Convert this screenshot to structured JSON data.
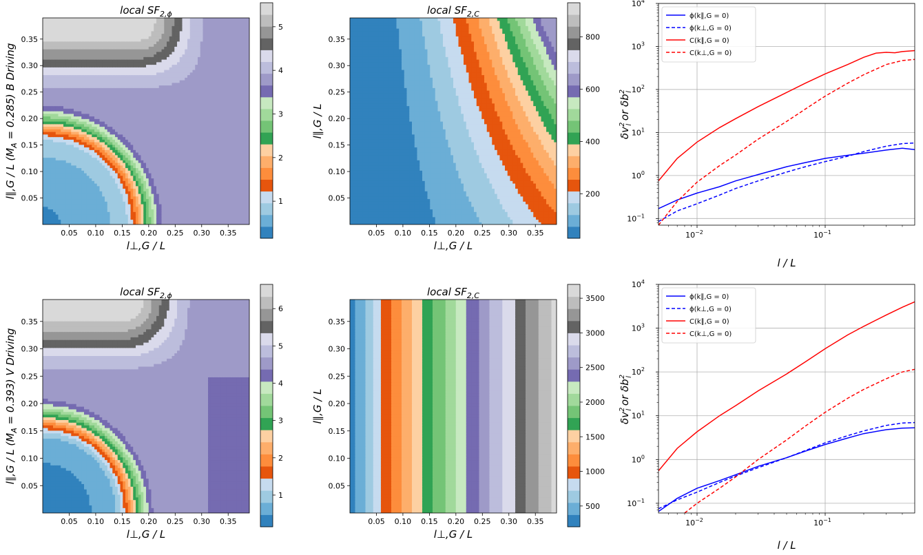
{
  "chart_data": [
    {
      "id": "p1",
      "type": "contour",
      "title": "local SF",
      "title_sub": "2,ϕ",
      "xlabel": "l⊥,G / L",
      "ylabel": "l∥,G / L  (M",
      "ylabel_sub": "A",
      "ylabel_tail": " = 0.285) B Driving",
      "xlim": [
        0,
        0.39
      ],
      "ylim": [
        0,
        0.39
      ],
      "xticks": [
        "0.05",
        "0.10",
        "0.15",
        "0.20",
        "0.25",
        "0.30",
        "0.35"
      ],
      "yticks": [
        "0.05",
        "0.10",
        "0.15",
        "0.20",
        "0.25",
        "0.30",
        "0.35"
      ],
      "colorbar": {
        "min": 0.15,
        "max": 5.55,
        "ticks": [
          "1",
          "2",
          "3",
          "4",
          "5"
        ]
      }
    },
    {
      "id": "p2",
      "type": "contour",
      "title": "local SF",
      "title_sub": "2,C",
      "xlabel": "l⊥,G / L",
      "ylabel": "l∥,G / L",
      "xlim": [
        0,
        0.39
      ],
      "ylim": [
        0,
        0.39
      ],
      "xticks": [
        "0.05",
        "0.10",
        "0.15",
        "0.20",
        "0.25",
        "0.30",
        "0.35"
      ],
      "yticks": [
        "0.05",
        "0.10",
        "0.15",
        "0.20",
        "0.25",
        "0.30",
        "0.35"
      ],
      "colorbar": {
        "min": 30,
        "max": 930,
        "ticks": [
          "200",
          "400",
          "600",
          "800"
        ]
      }
    },
    {
      "id": "p3",
      "type": "line",
      "xlabel": "l / L",
      "ylabel": "δv",
      "ylabel_tail": " or δb",
      "xscale": "log",
      "yscale": "log",
      "xlim": [
        0.005,
        0.5
      ],
      "ylim": [
        0.07,
        10000
      ],
      "xticks": [
        {
          "v": 0.01,
          "b": "10",
          "e": "−2"
        },
        {
          "v": 0.1,
          "b": "10",
          "e": "−1"
        }
      ],
      "yticks": [
        {
          "v": 0.1,
          "b": "10",
          "e": "−1"
        },
        {
          "v": 1,
          "b": "10",
          "e": "0"
        },
        {
          "v": 10,
          "b": "10",
          "e": "1"
        },
        {
          "v": 100,
          "b": "10",
          "e": "2"
        },
        {
          "v": 1000,
          "b": "10",
          "e": "3"
        },
        {
          "v": 10000,
          "b": "10",
          "e": "4"
        }
      ],
      "grid": true,
      "legend": "top-left",
      "series": [
        {
          "name": "ϕ(k∥,G = 0)",
          "color": "#0000ff",
          "dash": "solid",
          "x": [
            0.005,
            0.007,
            0.01,
            0.015,
            0.02,
            0.03,
            0.05,
            0.07,
            0.1,
            0.15,
            0.2,
            0.3,
            0.4,
            0.5
          ],
          "y": [
            0.17,
            0.27,
            0.39,
            0.55,
            0.75,
            1.05,
            1.6,
            2.0,
            2.5,
            2.95,
            3.3,
            3.9,
            4.3,
            4.0
          ]
        },
        {
          "name": "ϕ(k⊥,G = 0)",
          "color": "#0000ff",
          "dash": "dashed",
          "x": [
            0.005,
            0.007,
            0.01,
            0.015,
            0.02,
            0.03,
            0.05,
            0.07,
            0.1,
            0.15,
            0.2,
            0.3,
            0.4,
            0.5
          ],
          "y": [
            0.085,
            0.15,
            0.22,
            0.35,
            0.5,
            0.75,
            1.2,
            1.6,
            2.1,
            2.8,
            3.6,
            4.8,
            5.5,
            5.7
          ]
        },
        {
          "name": "C(k∥,G = 0)",
          "color": "#ff0000",
          "dash": "solid",
          "x": [
            0.005,
            0.007,
            0.01,
            0.015,
            0.02,
            0.03,
            0.05,
            0.07,
            0.1,
            0.15,
            0.2,
            0.25,
            0.3,
            0.35,
            0.4,
            0.5
          ],
          "y": [
            0.75,
            2.5,
            6,
            13,
            21,
            40,
            85,
            140,
            230,
            380,
            560,
            700,
            730,
            715,
            760,
            800
          ]
        },
        {
          "name": "C(k⊥,G = 0)",
          "color": "#ff0000",
          "dash": "dashed",
          "x": [
            0.005,
            0.007,
            0.01,
            0.015,
            0.02,
            0.03,
            0.05,
            0.07,
            0.1,
            0.15,
            0.2,
            0.3,
            0.4,
            0.5
          ],
          "y": [
            0.07,
            0.25,
            0.7,
            1.7,
            3,
            7,
            18,
            35,
            70,
            140,
            220,
            380,
            470,
            500
          ]
        }
      ]
    },
    {
      "id": "p4",
      "type": "contour",
      "title": "local SF",
      "title_sub": "2,ϕ",
      "xlabel": "l⊥,G / L",
      "ylabel": "l∥,G / L  (M",
      "ylabel_sub": "A",
      "ylabel_tail": " = 0.393) V Driving",
      "xlim": [
        0,
        0.39
      ],
      "ylim": [
        0,
        0.39
      ],
      "xticks": [
        "0.05",
        "0.10",
        "0.15",
        "0.20",
        "0.25",
        "0.30",
        "0.35"
      ],
      "yticks": [
        "0.05",
        "0.10",
        "0.15",
        "0.20",
        "0.25",
        "0.30",
        "0.35"
      ],
      "colorbar": {
        "min": 0.15,
        "max": 6.65,
        "ticks": [
          "1",
          "2",
          "3",
          "4",
          "5",
          "6"
        ]
      }
    },
    {
      "id": "p5",
      "type": "contour",
      "title": "local SF",
      "title_sub": "2,C",
      "xlabel": "l⊥,G / L",
      "ylabel": "l∥,G / L",
      "xlim": [
        0,
        0.39
      ],
      "ylim": [
        0,
        0.39
      ],
      "xticks": [
        "0.05",
        "0.10",
        "0.15",
        "0.20",
        "0.25",
        "0.30",
        "0.35"
      ],
      "yticks": [
        "0.05",
        "0.10",
        "0.15",
        "0.20",
        "0.25",
        "0.30",
        "0.35"
      ],
      "colorbar": {
        "min": 200,
        "max": 3700,
        "ticks": [
          "500",
          "1000",
          "1500",
          "2000",
          "2500",
          "3000",
          "3500"
        ]
      }
    },
    {
      "id": "p6",
      "type": "line",
      "xlabel": "l / L",
      "ylabel": "δv",
      "ylabel_tail": " or δb",
      "xscale": "log",
      "yscale": "log",
      "xlim": [
        0.005,
        0.5
      ],
      "ylim": [
        0.06,
        10000
      ],
      "xticks": [
        {
          "v": 0.01,
          "b": "10",
          "e": "−2"
        },
        {
          "v": 0.1,
          "b": "10",
          "e": "−1"
        }
      ],
      "yticks": [
        {
          "v": 0.1,
          "b": "10",
          "e": "−1"
        },
        {
          "v": 1,
          "b": "10",
          "e": "0"
        },
        {
          "v": 10,
          "b": "10",
          "e": "1"
        },
        {
          "v": 100,
          "b": "10",
          "e": "2"
        },
        {
          "v": 1000,
          "b": "10",
          "e": "3"
        },
        {
          "v": 10000,
          "b": "10",
          "e": "4"
        }
      ],
      "grid": true,
      "legend": "top-left",
      "series": [
        {
          "name": "ϕ(k∥,G = 0)",
          "color": "#0000ff",
          "dash": "solid",
          "x": [
            0.005,
            0.007,
            0.01,
            0.015,
            0.02,
            0.03,
            0.05,
            0.07,
            0.1,
            0.15,
            0.2,
            0.3,
            0.4,
            0.5
          ],
          "y": [
            0.065,
            0.13,
            0.22,
            0.33,
            0.45,
            0.7,
            1.1,
            1.55,
            2.2,
            3.1,
            3.9,
            4.8,
            5.2,
            5.3
          ]
        },
        {
          "name": "ϕ(k⊥,G = 0)",
          "color": "#0000ff",
          "dash": "dashed",
          "x": [
            0.005,
            0.007,
            0.01,
            0.015,
            0.02,
            0.03,
            0.05,
            0.07,
            0.1,
            0.15,
            0.2,
            0.3,
            0.4,
            0.5
          ],
          "y": [
            0.075,
            0.12,
            0.18,
            0.3,
            0.42,
            0.65,
            1.1,
            1.6,
            2.4,
            3.5,
            4.5,
            6.0,
            6.8,
            7.0
          ]
        },
        {
          "name": "C(k∥,G = 0)",
          "color": "#ff0000",
          "dash": "solid",
          "x": [
            0.005,
            0.007,
            0.01,
            0.015,
            0.02,
            0.03,
            0.05,
            0.07,
            0.1,
            0.15,
            0.2,
            0.3,
            0.4,
            0.5
          ],
          "y": [
            0.55,
            1.8,
            4.3,
            10,
            17,
            37,
            90,
            170,
            340,
            700,
            1100,
            2000,
            3000,
            4000
          ]
        },
        {
          "name": "C(k⊥,G = 0)",
          "color": "#ff0000",
          "dash": "dashed",
          "x": [
            0.008,
            0.01,
            0.015,
            0.02,
            0.03,
            0.05,
            0.07,
            0.1,
            0.15,
            0.2,
            0.3,
            0.4,
            0.5
          ],
          "y": [
            0.06,
            0.1,
            0.22,
            0.4,
            1.0,
            2.8,
            5.8,
            12,
            25,
            40,
            70,
            100,
            115
          ]
        }
      ]
    }
  ]
}
